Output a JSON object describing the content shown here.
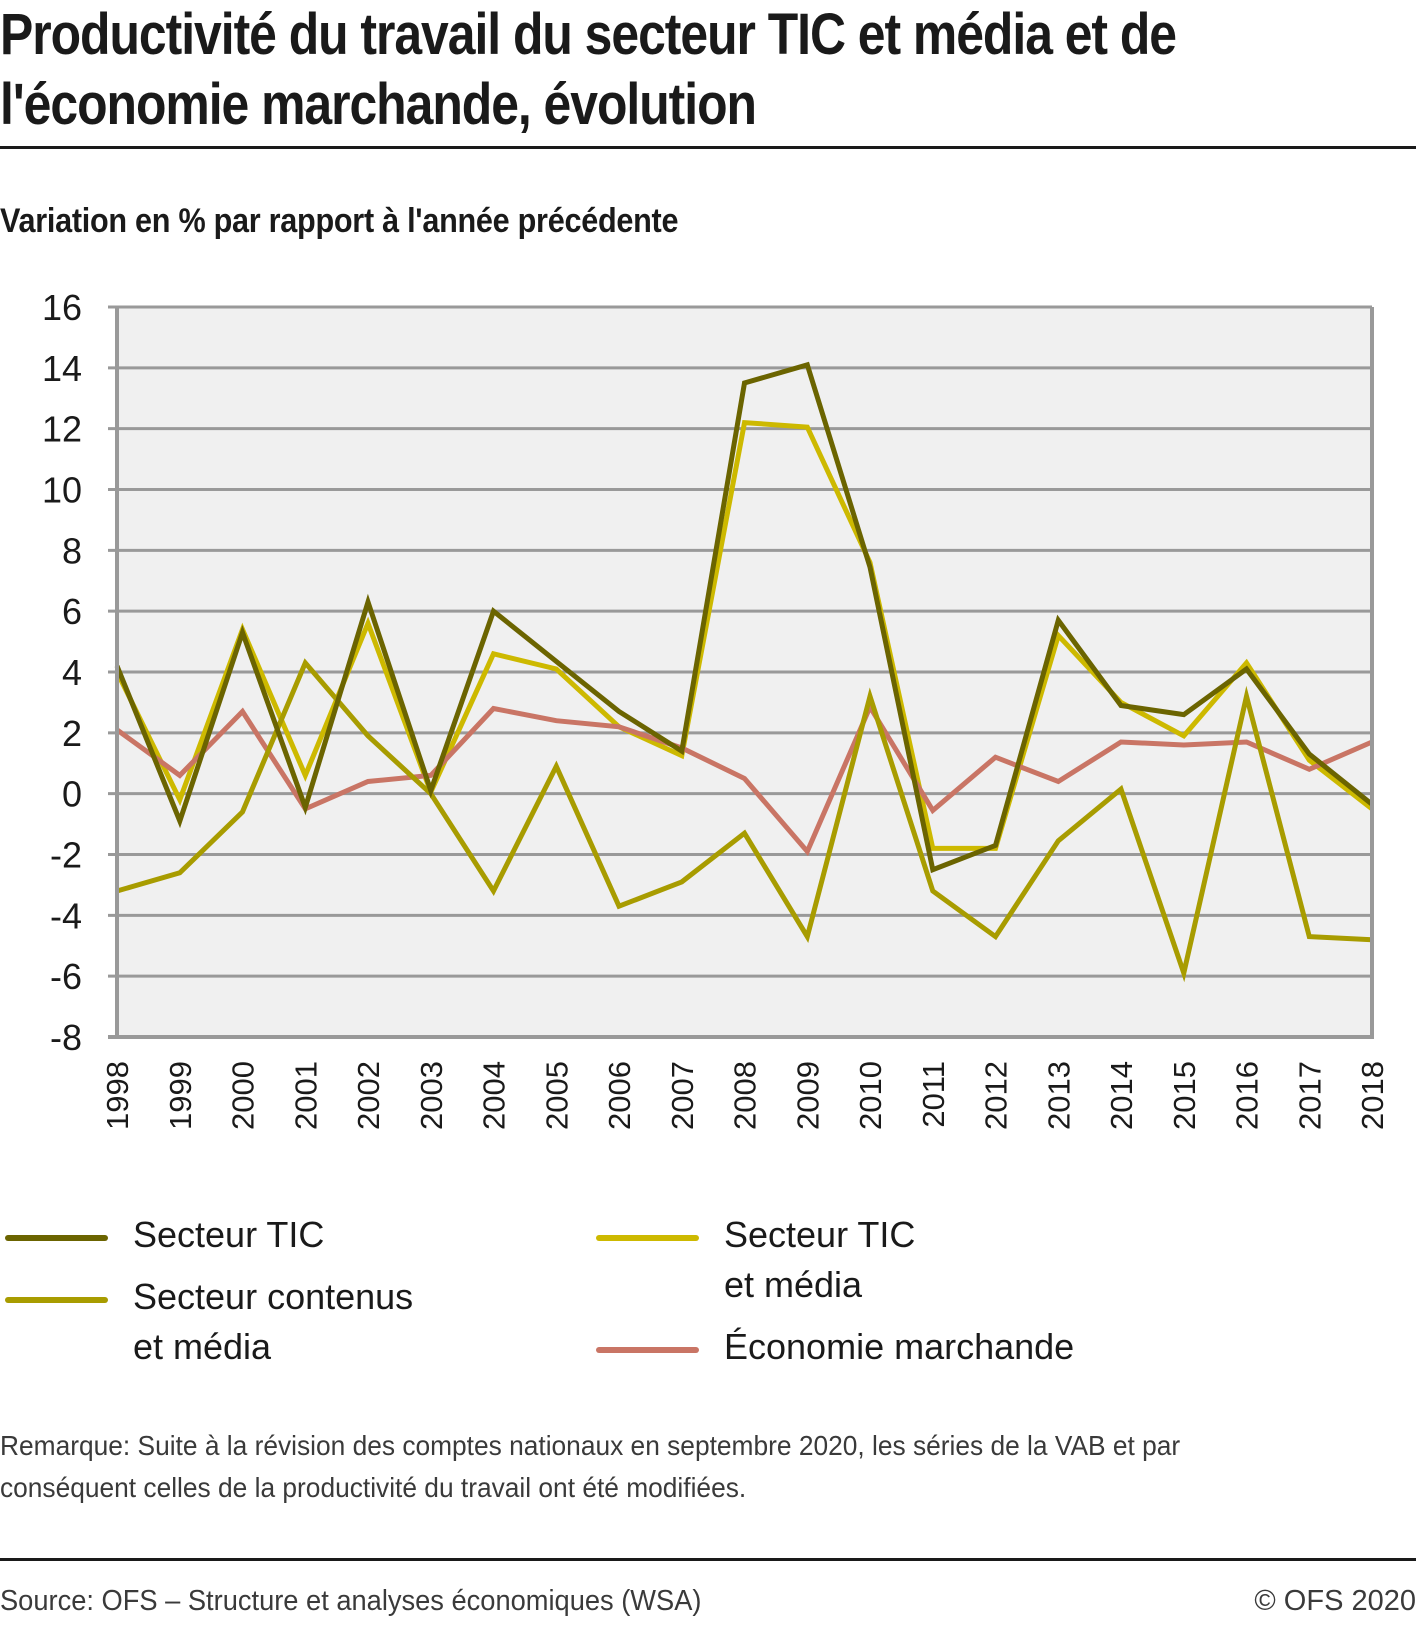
{
  "header": {
    "title_line1": "Productivité du travail du secteur TIC et média et de",
    "title_line2": "l'économie marchande, évolution",
    "subtitle": "Variation en % par rapport à l'année précédente"
  },
  "colors": {
    "secteur_tic": "#6b6400",
    "secteur_tic_media": "#cdb900",
    "secteur_contenus_media": "#a89c00",
    "economie_marchande": "#c97565",
    "plot_background": "#f0f0f0",
    "grid": "#999999"
  },
  "legend": {
    "items": [
      {
        "key": "secteur_tic",
        "label": "Secteur TIC"
      },
      {
        "key": "secteur_contenus_media",
        "label": "Secteur contenus\net média"
      },
      {
        "key": "secteur_tic_media",
        "label": "Secteur TIC\net média"
      },
      {
        "key": "economie_marchande",
        "label": "Économie marchande"
      }
    ]
  },
  "chart_data": {
    "type": "line",
    "title": "Productivité du travail du secteur TIC et média et de l'économie marchande, évolution",
    "subtitle": "Variation en % par rapport à l'année précédente",
    "xlabel": "",
    "ylabel": "Variation en % par rapport à l'année précédente",
    "ylim": [
      -8,
      16
    ],
    "yticks": [
      16,
      14,
      12,
      10,
      8,
      6,
      4,
      2,
      0,
      -2,
      -4,
      -6,
      -8
    ],
    "grid": true,
    "legend_position": "bottom",
    "x": [
      "1998",
      "1999",
      "2000",
      "2001",
      "2002",
      "2003",
      "2004",
      "2005",
      "2006",
      "2007",
      "2008",
      "2009",
      "2010",
      "2011",
      "2012",
      "2013",
      "2014",
      "2015",
      "2016",
      "2017",
      "2018"
    ],
    "series": [
      {
        "key": "secteur_tic_media",
        "name": "Secteur TIC et média",
        "values": [
          4.0,
          -0.2,
          5.4,
          0.6,
          5.6,
          0.05,
          4.6,
          4.1,
          2.2,
          1.25,
          12.2,
          12.05,
          7.6,
          -1.8,
          -1.8,
          5.2,
          3.0,
          1.9,
          4.3,
          1.1,
          -0.5
        ]
      },
      {
        "key": "economie_marchande",
        "name": "Économie marchande",
        "values": [
          2.1,
          0.6,
          2.7,
          -0.5,
          0.4,
          0.6,
          2.8,
          2.4,
          2.2,
          1.5,
          0.5,
          -1.9,
          2.85,
          -0.55,
          1.2,
          0.4,
          1.7,
          1.6,
          1.7,
          0.8,
          1.7
        ]
      },
      {
        "key": "secteur_contenus_media",
        "name": "Secteur contenus et média",
        "values": [
          -3.2,
          -2.6,
          -0.6,
          4.3,
          1.9,
          0.0,
          -3.2,
          0.9,
          -3.7,
          -2.9,
          -1.3,
          -4.7,
          3.2,
          -3.2,
          -4.7,
          -1.55,
          0.15,
          -5.9,
          3.2,
          -4.7,
          -4.8
        ]
      },
      {
        "key": "secteur_tic",
        "name": "Secteur TIC",
        "values": [
          4.2,
          -0.9,
          5.3,
          -0.45,
          6.3,
          0.1,
          6.0,
          4.35,
          2.7,
          1.4,
          13.5,
          14.1,
          7.45,
          -2.5,
          -1.7,
          5.7,
          2.9,
          2.6,
          4.1,
          1.3,
          -0.35
        ]
      }
    ]
  },
  "footer": {
    "note": "Remarque: Suite à la révision des comptes nationaux en septembre 2020, les séries de la VAB et par conséquent celles de la productivité du travail ont été modifiées.",
    "source": "Source: OFS – Structure et analyses économiques (WSA)",
    "copyright": "© OFS 2020"
  }
}
